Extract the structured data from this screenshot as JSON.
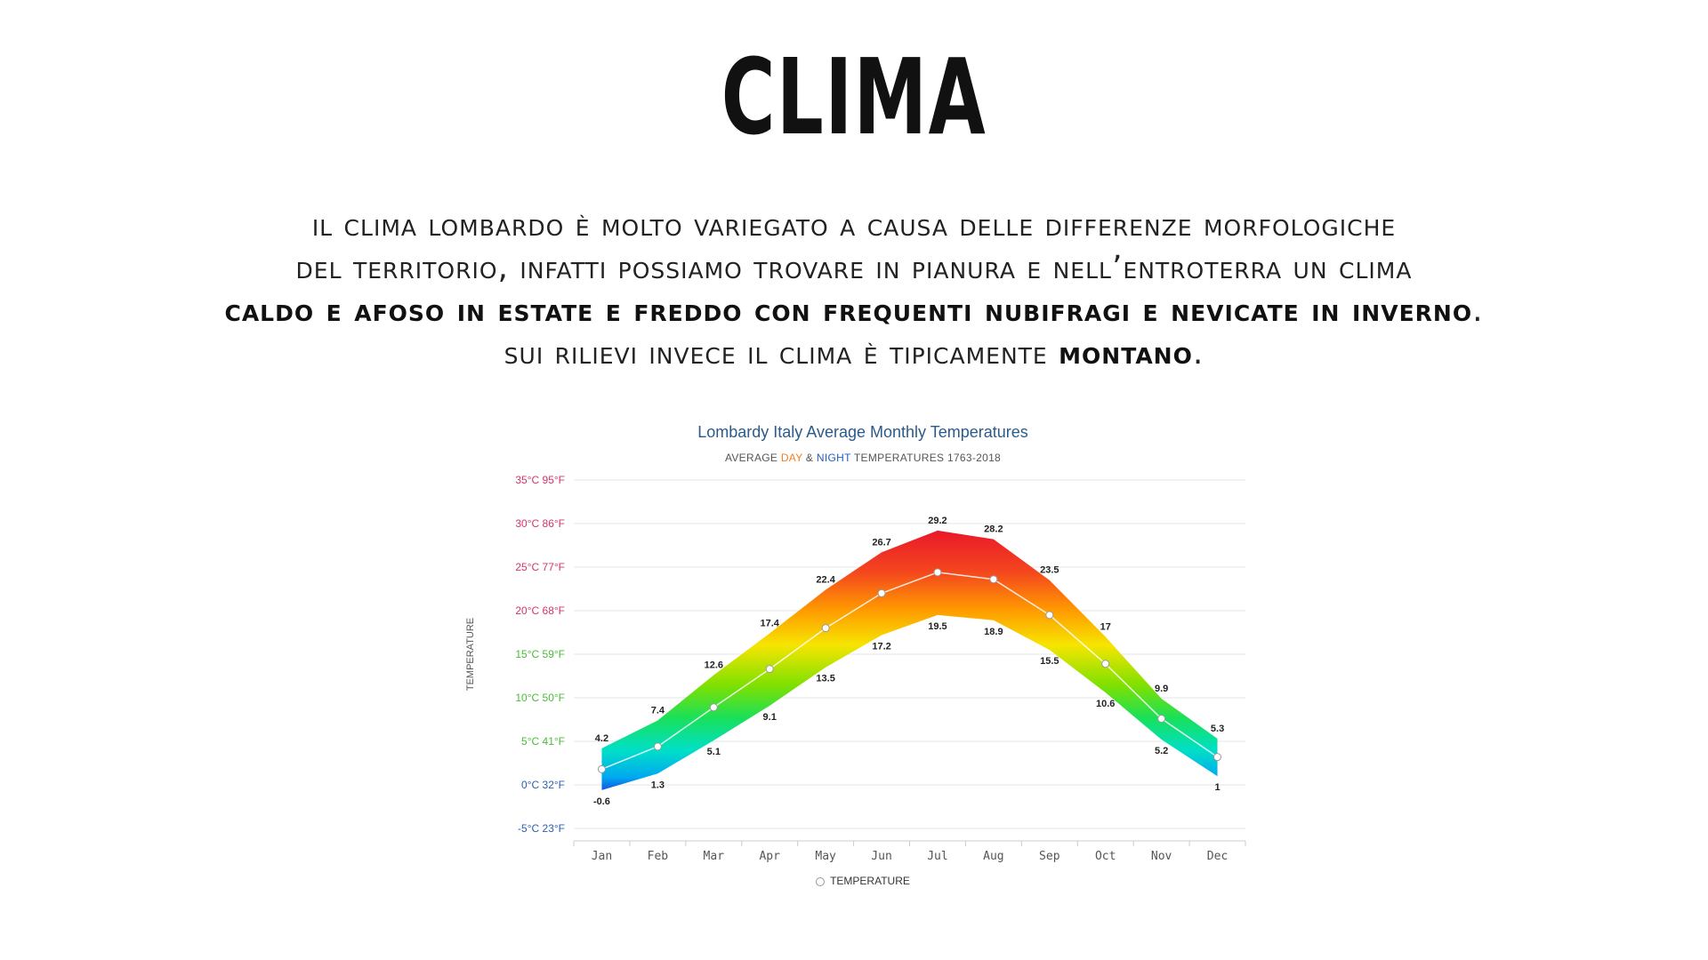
{
  "slide": {
    "title": "CLIMA",
    "intro": {
      "line1": "IL CLIMA LOMBARDO è MOLTO VARIEGATO A CAUSA DELLE DIFFERENZE MORFOLOGICHE",
      "line2": "DEL TERRITORIO, INFATTI POSSIAMO TROVARE IN PIANURA E NELL’ENTROTERRA UN CLIMA",
      "line3_bold": "CALDO E AFOSO IN ESTATE E FREDDO CON FREQUENTI NUBIFRAGI E NEVICATE IN INVERNO",
      "line3_end": ".",
      "line4_start": "SUI RILIEVI INVECE IL CLIMA è TIPICAMENTE ",
      "line4_bold": "MONTANO",
      "line4_end": "."
    }
  },
  "chart_data": {
    "type": "area",
    "title": "Lombardy Italy Average Monthly Temperatures",
    "subtitle_prefix": "AVERAGE ",
    "subtitle_day": "DAY",
    "subtitle_mid": " & ",
    "subtitle_night": "NIGHT",
    "subtitle_suffix": " TEMPERATURES 1763-2018",
    "ylabel": "TEMPERATURE",
    "categories": [
      "Jan",
      "Feb",
      "Mar",
      "Apr",
      "May",
      "Jun",
      "Jul",
      "Aug",
      "Sep",
      "Oct",
      "Nov",
      "Dec"
    ],
    "series": [
      {
        "values": [
          4.2,
          7.4,
          12.6,
          17.4,
          22.4,
          26.7,
          29.2,
          28.2,
          23.5,
          17,
          9.9,
          5.3
        ]
      },
      {
        "values": [
          -0.6,
          1.3,
          5.1,
          9.1,
          13.5,
          17.2,
          19.5,
          18.9,
          15.5,
          10.6,
          5.2,
          1
        ]
      },
      {
        "name": "TEMPERATURE",
        "values": [
          1.8,
          4.4,
          8.9,
          13.3,
          18,
          22,
          24.4,
          23.6,
          19.5,
          13.9,
          7.6,
          3.2
        ]
      }
    ],
    "yticks": [
      {
        "value": 35,
        "label": "35°C 95°F",
        "color": "#d6336c"
      },
      {
        "value": 30,
        "label": "30°C 86°F",
        "color": "#d6336c"
      },
      {
        "value": 25,
        "label": "25°C 77°F",
        "color": "#d6336c"
      },
      {
        "value": 20,
        "label": "20°C 68°F",
        "color": "#d6336c"
      },
      {
        "value": 15,
        "label": "15°C 59°F",
        "color": "#4cbb3a"
      },
      {
        "value": 10,
        "label": "10°C 50°F",
        "color": "#4cbb3a"
      },
      {
        "value": 5,
        "label": "5°C 41°F",
        "color": "#4cbb3a"
      },
      {
        "value": 0,
        "label": "0°C 32°F",
        "color": "#2a5fb0"
      },
      {
        "value": -5,
        "label": "-5°C 23°F",
        "color": "#2a5fb0"
      }
    ],
    "ylim": [
      -5,
      35
    ],
    "grid": true,
    "legend": "bottom",
    "legend_label": "TEMPERATURE"
  }
}
